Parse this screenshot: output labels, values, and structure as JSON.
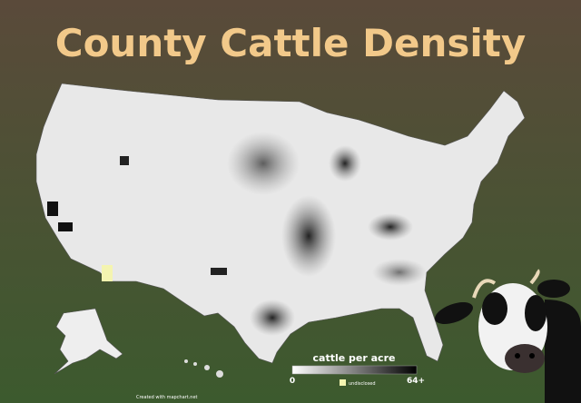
{
  "header": {
    "title": "County Cattle Density"
  },
  "legend": {
    "title": "cattle per acre",
    "min_label": "0",
    "max_label": "64+",
    "undisclosed_label": "undisclosed"
  },
  "footer": {
    "credit": "Created with mapchart.net"
  }
}
